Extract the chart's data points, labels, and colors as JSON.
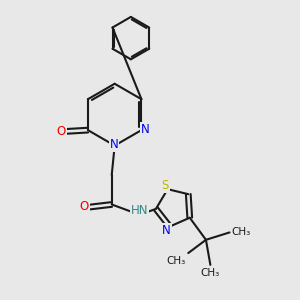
{
  "background_color": "#e8e8e8",
  "bond_color": "#1a1a1a",
  "bond_width": 1.5,
  "n_color": "#0000ee",
  "o_color": "#ee0000",
  "s_color": "#bbbb00",
  "h_color": "#338888",
  "text_fontsize": 8.5,
  "fig_width": 3.0,
  "fig_height": 3.0,
  "dpi": 100,
  "xlim": [
    0,
    10
  ],
  "ylim": [
    0,
    10
  ]
}
